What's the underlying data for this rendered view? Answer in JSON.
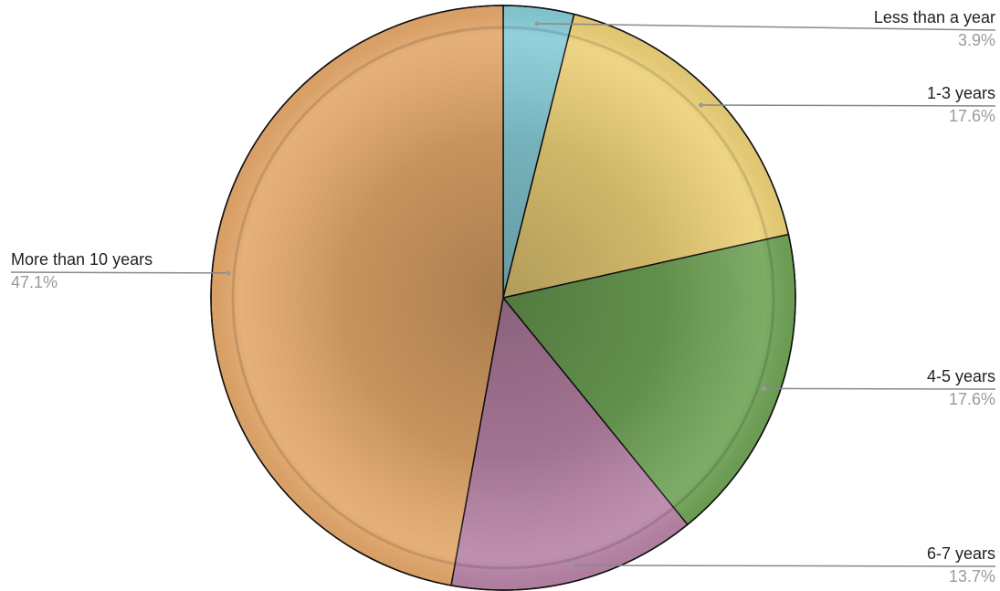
{
  "chart_data": {
    "type": "pie",
    "categories": [
      "Less than a year",
      "1-3 years",
      "4-5 years",
      "6-7 years",
      "More than 10 years"
    ],
    "values": [
      3.9,
      17.6,
      17.6,
      13.7,
      47.1
    ],
    "value_labels": [
      "3.9%",
      "17.6%",
      "17.6%",
      "13.7%",
      "47.1%"
    ],
    "colors": [
      "#86cbd6",
      "#ecd077",
      "#6fa356",
      "#b883a6",
      "#e3a76a"
    ]
  }
}
